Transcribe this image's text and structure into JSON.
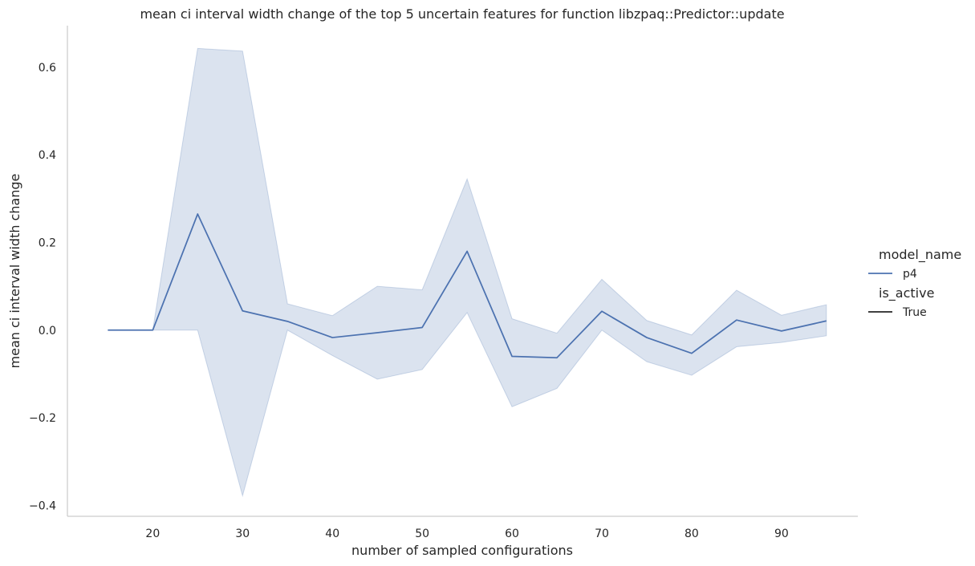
{
  "chart_data": {
    "type": "line",
    "title": "mean ci interval width change of the top 5 uncertain features for function libzpaq::Predictor::update",
    "xlabel": "number of sampled configurations",
    "ylabel": "mean ci interval width change",
    "xlim": [
      10.5,
      98.5
    ],
    "ylim": [
      -0.425,
      0.695
    ],
    "xticks": [
      20,
      30,
      40,
      50,
      60,
      70,
      80,
      90
    ],
    "yticks": [
      -0.4,
      -0.2,
      0.0,
      0.2,
      0.4,
      0.6
    ],
    "ytick_labels": [
      "−0.4",
      "−0.2",
      "0.0",
      "0.2",
      "0.4",
      "0.6"
    ],
    "grid": false,
    "legend_position": "right",
    "colors": {
      "line": "#4c72b0",
      "band": "#4c72b0",
      "axis": "#cccccc"
    },
    "legend": {
      "hue_title": "model_name",
      "hue_items": [
        {
          "label": "p4",
          "color": "#4c72b0"
        }
      ],
      "style_title": "is_active",
      "style_items": [
        {
          "label": "True",
          "color": "#262626"
        }
      ]
    },
    "series": [
      {
        "name": "p4",
        "x": [
          15,
          20,
          25,
          30,
          35,
          40,
          45,
          50,
          55,
          60,
          65,
          70,
          75,
          80,
          85,
          90,
          95
        ],
        "y": [
          0.0,
          0.0,
          0.265,
          0.044,
          0.02,
          -0.017,
          -0.006,
          0.006,
          0.18,
          -0.06,
          -0.063,
          0.043,
          -0.017,
          -0.053,
          0.023,
          -0.002,
          0.021
        ],
        "ci_low": [
          0.0,
          0.0,
          0.0,
          -0.378,
          0.0,
          -0.058,
          -0.112,
          -0.09,
          0.04,
          -0.175,
          -0.133,
          0.0,
          -0.072,
          -0.103,
          -0.038,
          -0.028,
          -0.013
        ],
        "ci_high": [
          0.0,
          0.0,
          0.643,
          0.637,
          0.06,
          0.033,
          0.1,
          0.092,
          0.345,
          0.026,
          -0.007,
          0.116,
          0.022,
          -0.011,
          0.091,
          0.034,
          0.058
        ]
      }
    ]
  }
}
